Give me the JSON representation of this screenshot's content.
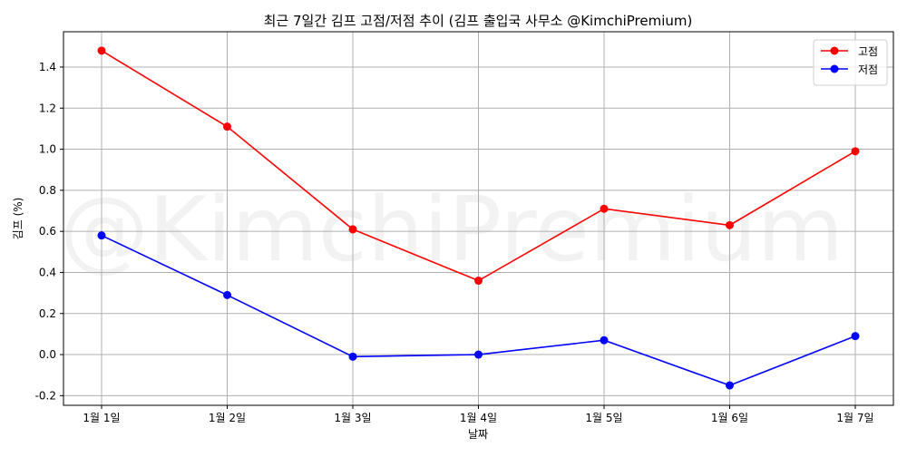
{
  "chart_data": {
    "type": "line",
    "title": "최근 7일간 김프 고점/저점 추이 (김프 출입국 사무소 @KimchiPremium)",
    "xlabel": "날짜",
    "ylabel": "김프 (%)",
    "watermark": "@KimchiPremium",
    "categories": [
      "1월 1일",
      "1월 2일",
      "1월 3일",
      "1월 4일",
      "1월 5일",
      "1월 6일",
      "1월 7일"
    ],
    "yticks": [
      -0.2,
      0.0,
      0.2,
      0.4,
      0.6,
      0.8,
      1.0,
      1.2,
      1.4
    ],
    "ytick_labels": [
      "-0.2",
      "0.0",
      "0.2",
      "0.4",
      "0.6",
      "0.8",
      "1.0",
      "1.2",
      "1.4"
    ],
    "ylim": [
      -0.247,
      1.572
    ],
    "grid": true,
    "legend_position": "top-right",
    "series": [
      {
        "name": "고점",
        "color": "#ff0000",
        "marker": "circle",
        "values": [
          1.48,
          1.11,
          0.61,
          0.36,
          0.71,
          0.63,
          0.99
        ]
      },
      {
        "name": "저점",
        "color": "#0000ff",
        "marker": "circle",
        "values": [
          0.58,
          0.29,
          -0.01,
          0.0,
          0.07,
          -0.15,
          0.09
        ]
      }
    ]
  }
}
